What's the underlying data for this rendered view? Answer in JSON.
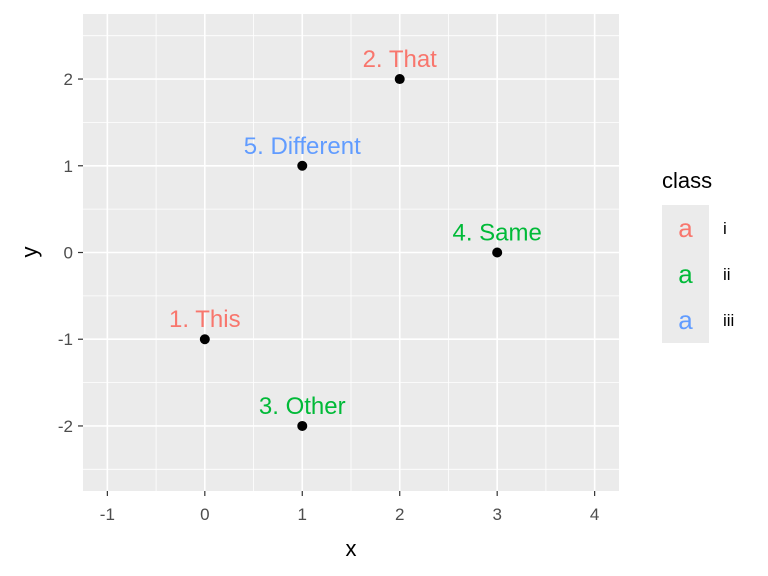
{
  "chart_data": {
    "type": "scatter",
    "xlabel": "x",
    "ylabel": "y",
    "xlim": [
      -1.25,
      4.25
    ],
    "ylim": [
      -2.75,
      2.75
    ],
    "xticks": [
      -1,
      0,
      1,
      2,
      3,
      4
    ],
    "xtick_labels": [
      "-1",
      "0",
      "1",
      "2",
      "3",
      "4"
    ],
    "yticks": [
      -2,
      -1,
      0,
      1,
      2
    ],
    "ytick_labels": [
      "-2",
      "-1",
      "0",
      "1",
      "2"
    ],
    "grid": true,
    "points": [
      {
        "x": 0,
        "y": -1,
        "label": "1. This",
        "class": "i"
      },
      {
        "x": 2,
        "y": 2,
        "label": "2. That",
        "class": "i"
      },
      {
        "x": 1,
        "y": -2,
        "label": "3. Other",
        "class": "ii"
      },
      {
        "x": 3,
        "y": 0,
        "label": "4. Same",
        "class": "ii"
      },
      {
        "x": 1,
        "y": 1,
        "label": "5. Different",
        "class": "iii"
      }
    ],
    "legend": {
      "title": "class",
      "position": "right",
      "key_glyph": "a",
      "entries": [
        {
          "label": "i",
          "color": "#F8766D"
        },
        {
          "label": "ii",
          "color": "#00BA38"
        },
        {
          "label": "iii",
          "color": "#619CFF"
        }
      ]
    },
    "colors": {
      "panel_background": "#EBEBEB",
      "grid_major": "#FFFFFF",
      "point": "#000000"
    }
  }
}
